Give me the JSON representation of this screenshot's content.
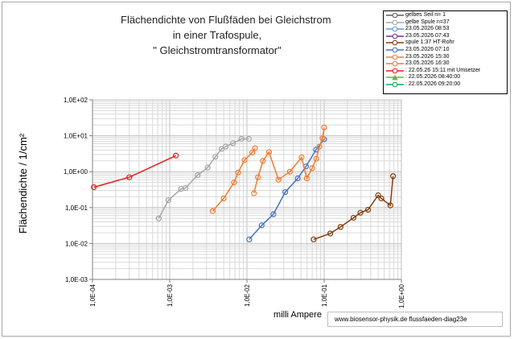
{
  "title_lines": [
    "Flächendichte von Flußfäden bei Gleichstrom",
    "in einer Trafospule,",
    "\" Gleichstromtransformator\""
  ],
  "watermark": "www.biosensor-physik.de  flussfaeden-diag23e",
  "chart_data": {
    "type": "scatter",
    "xlabel": "milli Ampere",
    "ylabel": "Flächendichte / 1/cm²",
    "xscale": "log",
    "yscale": "log",
    "xlim": [
      0.0001,
      1
    ],
    "ylim": [
      0.001,
      100
    ],
    "grid": true,
    "legend_placement": "top-right",
    "xticks": [
      {
        "value": 0.0001,
        "label": "1,0E-04"
      },
      {
        "value": 0.001,
        "label": "1,0E-03"
      },
      {
        "value": 0.01,
        "label": "1,0E-02"
      },
      {
        "value": 0.1,
        "label": "1,0E-01"
      },
      {
        "value": 1,
        "label": "1,0E+00"
      }
    ],
    "yticks": [
      {
        "value": 100,
        "label": "1,0E+02"
      },
      {
        "value": 10,
        "label": "1,0E+01"
      },
      {
        "value": 1,
        "label": "1,0E+00"
      },
      {
        "value": 0.1,
        "label": "1,0E-01"
      },
      {
        "value": 0.01,
        "label": "1,0E-02"
      },
      {
        "value": 0.001,
        "label": "1,0E-03"
      }
    ],
    "series": [
      {
        "name": "gelbes Seil n= 1",
        "color": "#595959",
        "marker": "circle",
        "x": [],
        "y": []
      },
      {
        "name": "gelbe Spule n=37",
        "color": "#a5a5a5",
        "marker": "circle",
        "x": [
          0.00072,
          0.00096,
          0.0014,
          0.0016,
          0.0023,
          0.0031,
          0.0039,
          0.0047,
          0.0053,
          0.0066,
          0.0085,
          0.0106
        ],
        "y": [
          0.05,
          0.16,
          0.33,
          0.35,
          0.8,
          1.3,
          2.6,
          4.3,
          5.0,
          6.2,
          8.2,
          8.2
        ]
      },
      {
        "name": "23.05.2026 08:53",
        "color": "#5b9bd5",
        "marker": "circle",
        "x": [],
        "y": []
      },
      {
        "name": "23.05.2026 07:43",
        "color": "#7030a0",
        "marker": "circle",
        "x": [],
        "y": []
      },
      {
        "name": "spule 1:37 HT-Rohr",
        "color": "#843c0c",
        "marker": "circle",
        "x": [
          0.073,
          0.12,
          0.163,
          0.24,
          0.295,
          0.37,
          0.5,
          0.55,
          0.72,
          0.78
        ],
        "y": [
          0.013,
          0.019,
          0.029,
          0.052,
          0.072,
          0.087,
          0.22,
          0.18,
          0.115,
          0.75
        ]
      },
      {
        "name": "23.05.2026 07:10",
        "color": "#4472c4",
        "marker": "circle",
        "x": [
          0.0107,
          0.0155,
          0.022,
          0.0313,
          0.0454,
          0.0582,
          0.0784,
          0.1
        ],
        "y": [
          0.013,
          0.032,
          0.065,
          0.27,
          0.65,
          1.4,
          4.1,
          8.0
        ]
      },
      {
        "name": "23.05.2026 15:30",
        "color": "#ed7d31",
        "marker": "circle",
        "x": [
          0.0036,
          0.005,
          0.0068,
          0.0077,
          0.0093,
          0.0117,
          0.0127
        ],
        "y": [
          0.08,
          0.18,
          0.5,
          0.95,
          2.1,
          3.4,
          4.5
        ]
      },
      {
        "name": "23.05.2026 16:30",
        "color": "#ed7d31",
        "marker": "circle",
        "x": [
          0.0123,
          0.0139,
          0.0161,
          0.0193,
          0.0256,
          0.036,
          0.051,
          0.0595,
          0.07,
          0.079,
          0.087,
          0.095,
          0.1
        ],
        "y": [
          0.25,
          0.7,
          2.0,
          3.5,
          0.6,
          1.0,
          2.5,
          0.65,
          1.25,
          2.3,
          5.0,
          8.5,
          17.0
        ]
      },
      {
        "name": ": 22.05.26 15:11 mit Umsetzer",
        "color": "#e81c1c",
        "marker": "circle",
        "x": [
          0.000104,
          0.0003,
          0.0012
        ],
        "y": [
          0.37,
          0.7,
          2.8
        ]
      },
      {
        "name": ": 22.05.2026 08:40:00",
        "color": "#70ad47",
        "marker": "triangle",
        "x": [],
        "y": []
      },
      {
        "name": ": 22.05.2026 09:20:00",
        "color": "#00b050",
        "marker": "circle",
        "x": [],
        "y": []
      }
    ]
  }
}
